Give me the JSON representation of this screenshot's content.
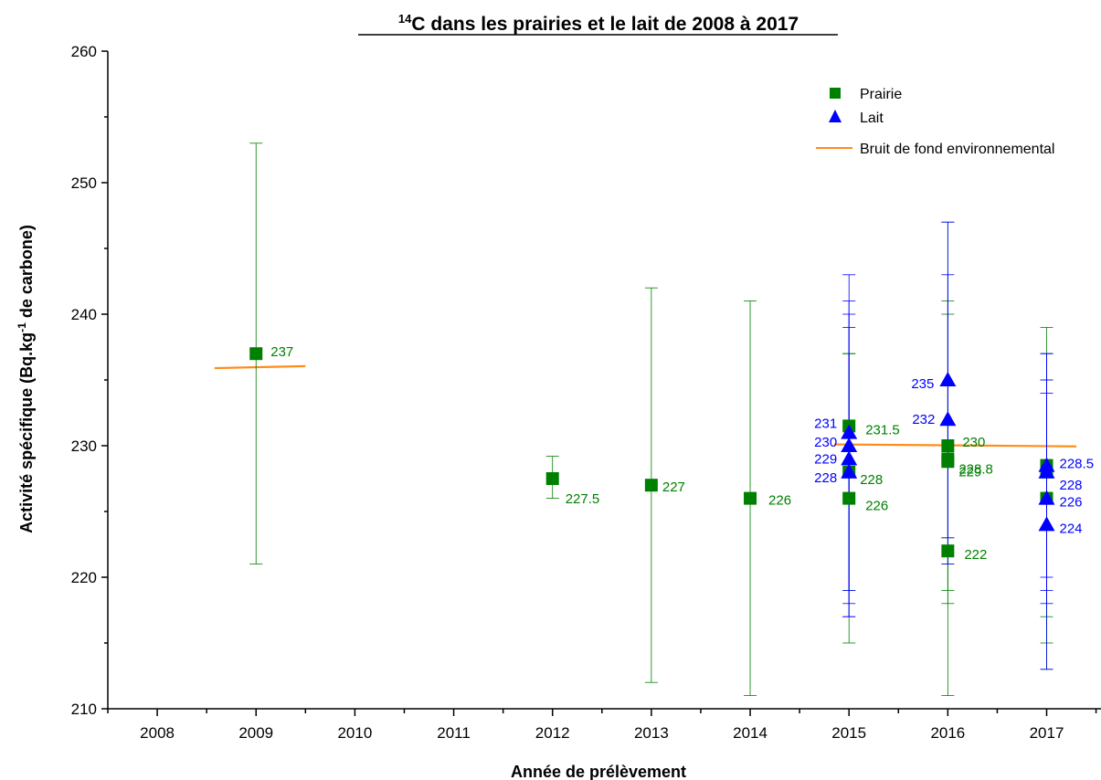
{
  "chart_data": {
    "type": "scatter",
    "title_sup": "14",
    "title": "C dans les prairies et le lait de 2008 à 2017",
    "xlabel": "Année de prélèvement",
    "ylabel_prefix": "Activité spécifique (Bq.kg",
    "ylabel_sup": "-1",
    "ylabel_suffix": " de carbone)",
    "xlim": [
      2007.5,
      2017.55
    ],
    "ylim": [
      210,
      260
    ],
    "xticks": [
      2008,
      2009,
      2010,
      2011,
      2012,
      2013,
      2014,
      2015,
      2016,
      2017
    ],
    "yticks": [
      210,
      220,
      230,
      240,
      250,
      260
    ],
    "grid": false,
    "legend_position": "top-right",
    "colors": {
      "prairie": "#008000",
      "lait": "#0000ff",
      "bruit_de_fond": "#ff8c1a"
    },
    "series": [
      {
        "name": "Prairie",
        "marker": "square",
        "points": [
          {
            "x": 2009,
            "y": 237,
            "err_low": 221,
            "err_high": 253,
            "label": "237"
          },
          {
            "x": 2012,
            "y": 227.5,
            "err_low": 226,
            "err_high": 229.2,
            "label": "227.5"
          },
          {
            "x": 2013,
            "y": 227,
            "err_low": 212,
            "err_high": 242,
            "label": "227"
          },
          {
            "x": 2014,
            "y": 226,
            "err_low": 211,
            "err_high": 241,
            "label": "226"
          },
          {
            "x": 2015,
            "y": 231.5,
            "err_low": 226,
            "err_high": 237,
            "label": "231.5"
          },
          {
            "x": 2015,
            "y": 228,
            "err_low": 219,
            "err_high": 237,
            "label": "228"
          },
          {
            "x": 2015,
            "y": 226,
            "err_low": 215,
            "err_high": 237,
            "label": "226"
          },
          {
            "x": 2016,
            "y": 230,
            "err_low": 219,
            "err_high": 241,
            "label": "230"
          },
          {
            "x": 2016,
            "y": 228.8,
            "err_low": 218,
            "err_high": 240,
            "label": "228.8"
          },
          {
            "x": 2016,
            "y": 229,
            "err_low": 211,
            "err_high": 247,
            "label": "229"
          },
          {
            "x": 2016,
            "y": 222,
            "err_low": 221,
            "err_high": 223,
            "label": "222"
          },
          {
            "x": 2017,
            "y": 228.5,
            "err_low": 217,
            "err_high": 239,
            "label": "228.5"
          },
          {
            "x": 2017,
            "y": 228,
            "err_low": 215,
            "err_high": 237,
            "label": "228"
          },
          {
            "x": 2017,
            "y": 226,
            "err_low": 213,
            "err_high": 235,
            "label": "226"
          }
        ]
      },
      {
        "name": "Lait",
        "marker": "triangle",
        "points": [
          {
            "x": 2015,
            "y": 231,
            "err_low": 219,
            "err_high": 243,
            "label": "231"
          },
          {
            "x": 2015,
            "y": 230,
            "err_low": 218,
            "err_high": 241,
            "label": "230"
          },
          {
            "x": 2015,
            "y": 229,
            "err_low": 217,
            "err_high": 240,
            "label": "229"
          },
          {
            "x": 2015,
            "y": 228,
            "err_low": 217,
            "err_high": 239,
            "label": "228"
          },
          {
            "x": 2016,
            "y": 235,
            "err_low": 223,
            "err_high": 247,
            "label": "235"
          },
          {
            "x": 2016,
            "y": 232,
            "err_low": 221,
            "err_high": 243,
            "label": "232"
          },
          {
            "x": 2017,
            "y": 228.5,
            "err_low": 220,
            "err_high": 237,
            "label": ""
          },
          {
            "x": 2017,
            "y": 228,
            "err_low": 219,
            "err_high": 237,
            "label": ""
          },
          {
            "x": 2017,
            "y": 226,
            "err_low": 218,
            "err_high": 234,
            "label": ""
          },
          {
            "x": 2017,
            "y": 224,
            "err_low": 213,
            "err_high": 235,
            "label": "224"
          }
        ]
      },
      {
        "name": "Bruit de fond environnemental",
        "marker": "line",
        "segments": [
          {
            "x": [
              2008.58,
              2009.5
            ],
            "y": [
              235.9,
              236.05
            ]
          },
          {
            "x": [
              2014.85,
              2017.3
            ],
            "y": [
              230.1,
              229.95
            ]
          }
        ]
      }
    ]
  }
}
